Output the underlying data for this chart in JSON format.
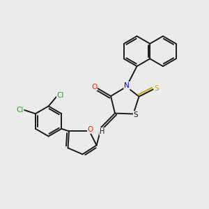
{
  "background_color": "#ebebeb",
  "bond_color": "#1a1a1a",
  "atom_colors": {
    "Cl": "#00bb00",
    "O": "#ff2200",
    "N": "#0000ee",
    "S_thioxo": "#ccaa00",
    "S_ring": "#1a1a1a",
    "H": "#1a1a1a",
    "C": "#1a1a1a"
  },
  "figsize": [
    3.0,
    3.0
  ],
  "dpi": 100
}
